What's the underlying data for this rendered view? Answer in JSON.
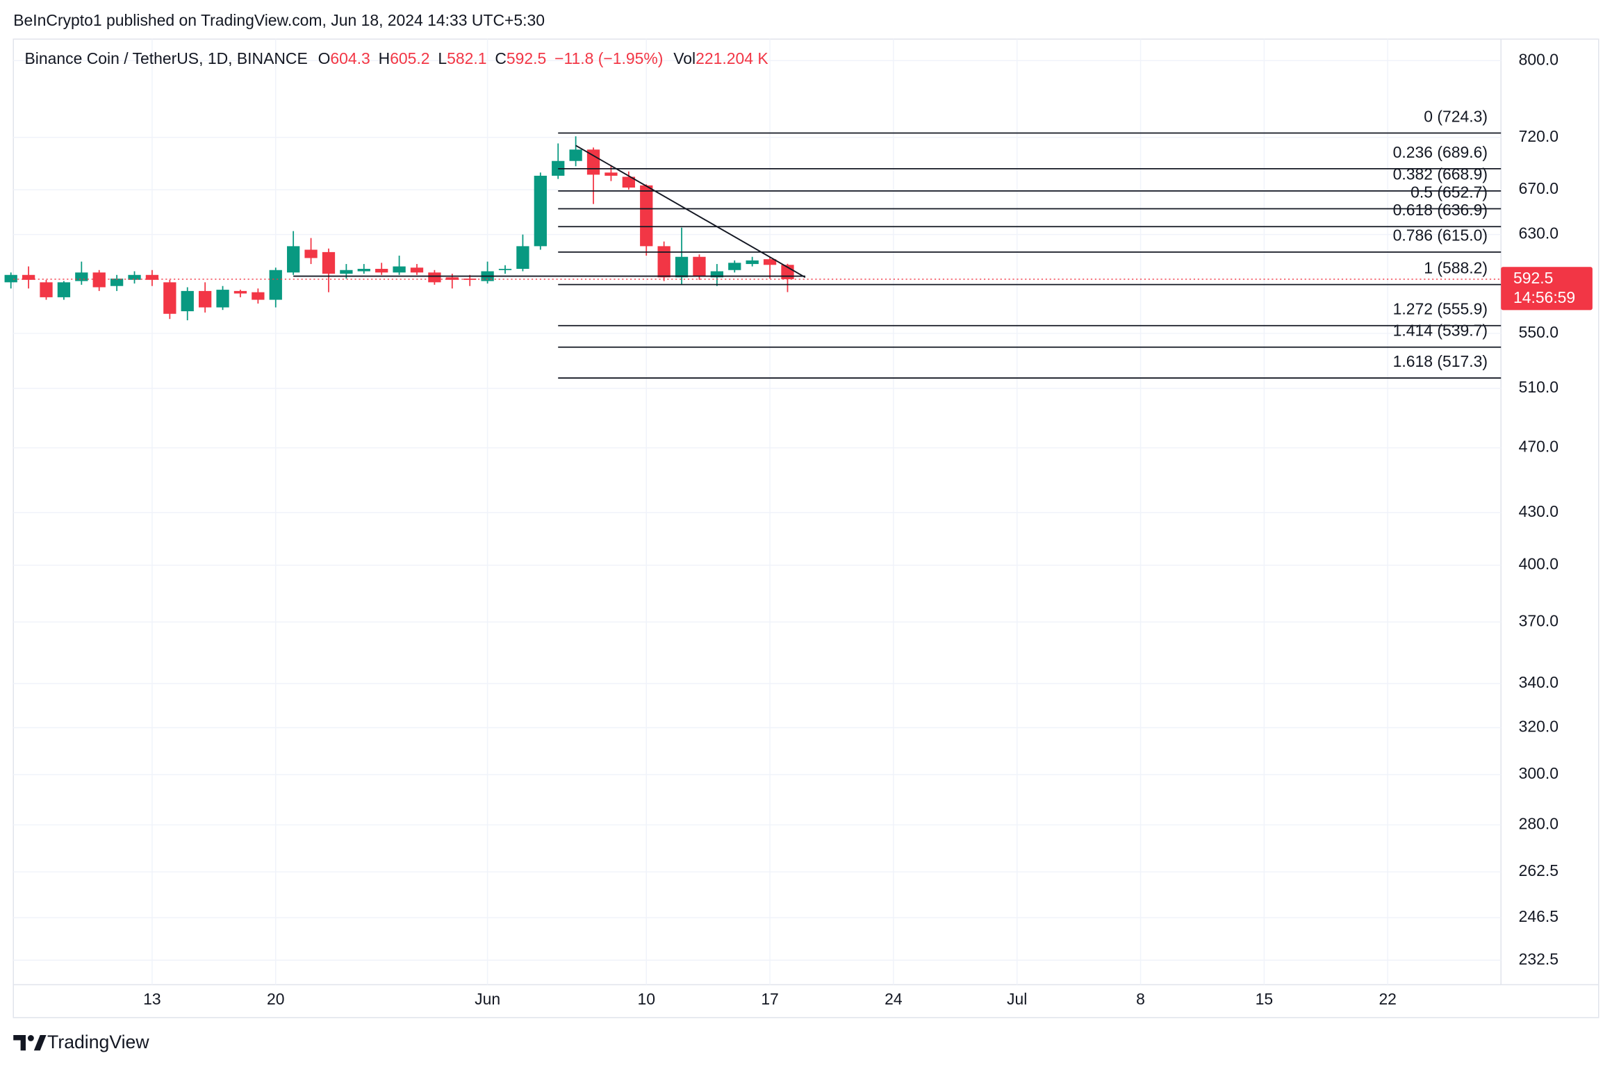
{
  "header": "BeInCrypto1 published on TradingView.com, Jun 18, 2024 14:33 UTC+5:30",
  "brand": "TradingView",
  "chart_data": {
    "type": "candlestick",
    "title": "Binance Coin / TetherUS, 1D, BINANCE",
    "ohlc_letters": [
      "O",
      "H",
      "L",
      "C"
    ],
    "change_label": "−11.8 (−1.95%)",
    "volume_prefix": "Vol",
    "volume_label": "221.204 K",
    "countdown": "14:56:59",
    "up_color": "#089981",
    "down_color": "#f23645",
    "log": true,
    "grid": true,
    "ylim": [
      224.8,
      824
    ],
    "yticks": [
      {
        "value": 800,
        "label": "800.0"
      },
      {
        "value": 720,
        "label": "720.0"
      },
      {
        "value": 670,
        "label": "670.0"
      },
      {
        "value": 630,
        "label": "630.0"
      },
      {
        "value": 550,
        "label": "550.0"
      },
      {
        "value": 510,
        "label": "510.0"
      },
      {
        "value": 470,
        "label": "470.0"
      },
      {
        "value": 430,
        "label": "430.0"
      },
      {
        "value": 400,
        "label": "400.0"
      },
      {
        "value": 370,
        "label": "370.0"
      },
      {
        "value": 340,
        "label": "340.0"
      },
      {
        "value": 320,
        "label": "320.0"
      },
      {
        "value": 300,
        "label": "300.0"
      },
      {
        "value": 280,
        "label": "280.0"
      },
      {
        "value": 262.5,
        "label": "262.5"
      },
      {
        "value": 246.5,
        "label": "246.5"
      },
      {
        "value": 232.5,
        "label": "232.5"
      }
    ],
    "xlim": [
      "2024-05-05T03:20Z",
      "2024-07-28T10:00Z"
    ],
    "xticks": [
      {
        "value": "2024-05-13",
        "label": "13"
      },
      {
        "value": "2024-05-20",
        "label": "20"
      },
      {
        "value": "2024-06-01",
        "label": "Jun"
      },
      {
        "value": "2024-06-10",
        "label": "10"
      },
      {
        "value": "2024-06-17",
        "label": "17"
      },
      {
        "value": "2024-06-24",
        "label": "24"
      },
      {
        "value": "2024-07-01",
        "label": "Jul"
      },
      {
        "value": "2024-07-08",
        "label": "8"
      },
      {
        "value": "2024-07-15",
        "label": "15"
      },
      {
        "value": "2024-07-22",
        "label": "22"
      }
    ],
    "candles": [
      {
        "x": "2024-05-05",
        "open": 590,
        "high": 598,
        "low": 585,
        "close": 596
      },
      {
        "x": "2024-05-06",
        "open": 596,
        "high": 603,
        "low": 585,
        "close": 592
      },
      {
        "x": "2024-05-07",
        "open": 590,
        "high": 592,
        "low": 576,
        "close": 578
      },
      {
        "x": "2024-05-08",
        "open": 578,
        "high": 591,
        "low": 576,
        "close": 590
      },
      {
        "x": "2024-05-09",
        "open": 591,
        "high": 607,
        "low": 588,
        "close": 598
      },
      {
        "x": "2024-05-10",
        "open": 598,
        "high": 600,
        "low": 583,
        "close": 586
      },
      {
        "x": "2024-05-11",
        "open": 587,
        "high": 596,
        "low": 583,
        "close": 593
      },
      {
        "x": "2024-05-12",
        "open": 592,
        "high": 599,
        "low": 589,
        "close": 596
      },
      {
        "x": "2024-05-13",
        "open": 596,
        "high": 600,
        "low": 587,
        "close": 592
      },
      {
        "x": "2024-05-14",
        "open": 590,
        "high": 592,
        "low": 561,
        "close": 565
      },
      {
        "x": "2024-05-15",
        "open": 567,
        "high": 586,
        "low": 560,
        "close": 583
      },
      {
        "x": "2024-05-16",
        "open": 583,
        "high": 590,
        "low": 566,
        "close": 570
      },
      {
        "x": "2024-05-17",
        "open": 570,
        "high": 587,
        "low": 568,
        "close": 584
      },
      {
        "x": "2024-05-18",
        "open": 583,
        "high": 584,
        "low": 578,
        "close": 581
      },
      {
        "x": "2024-05-19",
        "open": 582,
        "high": 585,
        "low": 573,
        "close": 576
      },
      {
        "x": "2024-05-20",
        "open": 576,
        "high": 602,
        "low": 570,
        "close": 600
      },
      {
        "x": "2024-05-21",
        "open": 598,
        "high": 633,
        "low": 596,
        "close": 620
      },
      {
        "x": "2024-05-22",
        "open": 617,
        "high": 627,
        "low": 605,
        "close": 610
      },
      {
        "x": "2024-05-23",
        "open": 615,
        "high": 618,
        "low": 582,
        "close": 597
      },
      {
        "x": "2024-05-24",
        "open": 597,
        "high": 605,
        "low": 593,
        "close": 600
      },
      {
        "x": "2024-05-25",
        "open": 599,
        "high": 605,
        "low": 597,
        "close": 601
      },
      {
        "x": "2024-05-26",
        "open": 601,
        "high": 606,
        "low": 596,
        "close": 598
      },
      {
        "x": "2024-05-27",
        "open": 598,
        "high": 612,
        "low": 596,
        "close": 603
      },
      {
        "x": "2024-05-28",
        "open": 602,
        "high": 605,
        "low": 596,
        "close": 598
      },
      {
        "x": "2024-05-29",
        "open": 598,
        "high": 600,
        "low": 588,
        "close": 590
      },
      {
        "x": "2024-05-30",
        "open": 594,
        "high": 597,
        "low": 585,
        "close": 592
      },
      {
        "x": "2024-05-31",
        "open": 593,
        "high": 596,
        "low": 587,
        "close": 592
      },
      {
        "x": "2024-06-01",
        "open": 591,
        "high": 607,
        "low": 589,
        "close": 599
      },
      {
        "x": "2024-06-02",
        "open": 600,
        "high": 604,
        "low": 597,
        "close": 601
      },
      {
        "x": "2024-06-03",
        "open": 601,
        "high": 630,
        "low": 599,
        "close": 620
      },
      {
        "x": "2024-06-04",
        "open": 620,
        "high": 686,
        "low": 617,
        "close": 683
      },
      {
        "x": "2024-06-05",
        "open": 683,
        "high": 714,
        "low": 680,
        "close": 697
      },
      {
        "x": "2024-06-06",
        "open": 697,
        "high": 721,
        "low": 692,
        "close": 708
      },
      {
        "x": "2024-06-07",
        "open": 708,
        "high": 710,
        "low": 657,
        "close": 684
      },
      {
        "x": "2024-06-08",
        "open": 686,
        "high": 693,
        "low": 678,
        "close": 683
      },
      {
        "x": "2024-06-09",
        "open": 682,
        "high": 687,
        "low": 670,
        "close": 672
      },
      {
        "x": "2024-06-10",
        "open": 674,
        "high": 675,
        "low": 612,
        "close": 620
      },
      {
        "x": "2024-06-11",
        "open": 620,
        "high": 624,
        "low": 591,
        "close": 594
      },
      {
        "x": "2024-06-12",
        "open": 594,
        "high": 636,
        "low": 588,
        "close": 611
      },
      {
        "x": "2024-06-13",
        "open": 611,
        "high": 613,
        "low": 592,
        "close": 595
      },
      {
        "x": "2024-06-14",
        "open": 594,
        "high": 605,
        "low": 587,
        "close": 599
      },
      {
        "x": "2024-06-15",
        "open": 600,
        "high": 608,
        "low": 598,
        "close": 606
      },
      {
        "x": "2024-06-16",
        "open": 605,
        "high": 611,
        "low": 603,
        "close": 608
      },
      {
        "x": "2024-06-17",
        "open": 609,
        "high": 611,
        "low": 593,
        "close": 604.3
      },
      {
        "x": "2024-06-18",
        "open": 604.3,
        "high": 605.2,
        "low": 582.1,
        "close": 592.5
      }
    ],
    "fib_start": "2024-06-05",
    "fib_levels": [
      {
        "value": 724.3,
        "label": "0 (724.3)"
      },
      {
        "value": 689.6,
        "label": "0.236 (689.6)"
      },
      {
        "value": 668.9,
        "label": "0.382 (668.9)"
      },
      {
        "value": 652.7,
        "label": "0.5 (652.7)"
      },
      {
        "value": 636.9,
        "label": "0.618 (636.9)"
      },
      {
        "value": 615.0,
        "label": "0.786 (615.0)"
      },
      {
        "value": 588.2,
        "label": "1 (588.2)"
      },
      {
        "value": 555.9,
        "label": "1.272 (555.9)"
      },
      {
        "value": 539.7,
        "label": "1.414 (539.7)"
      },
      {
        "value": 517.3,
        "label": "1.618 (517.3)"
      }
    ],
    "trendlines": [
      {
        "x": [
          "2024-05-21",
          "2024-06-19"
        ],
        "y": [
          595,
          595
        ]
      },
      {
        "x": [
          "2024-06-06",
          "2024-06-19"
        ],
        "y": [
          712,
          594
        ]
      }
    ]
  }
}
